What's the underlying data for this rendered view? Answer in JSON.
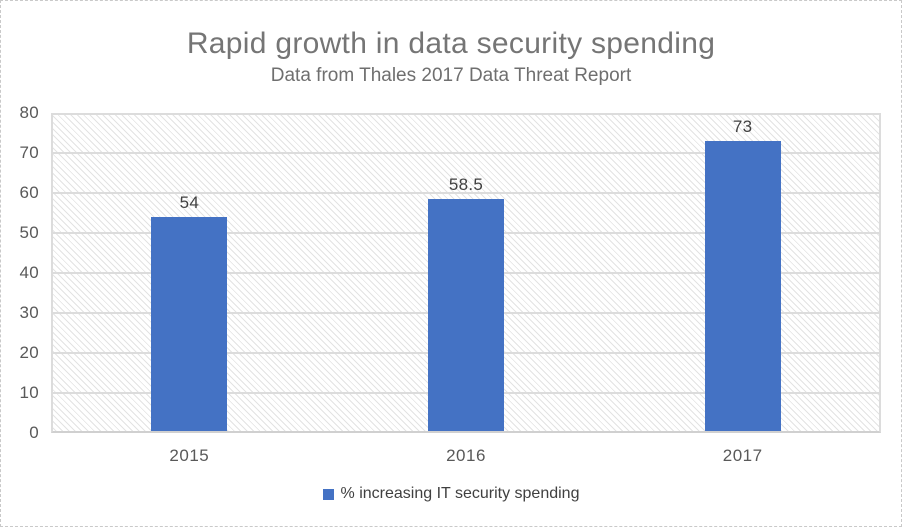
{
  "chart_data": {
    "type": "bar",
    "title": "Rapid growth in data security spending",
    "subtitle": "Data from Thales 2017 Data Threat Report",
    "categories": [
      "2015",
      "2016",
      "2017"
    ],
    "series": [
      {
        "name": "% increasing IT security spending",
        "values": [
          54,
          58.5,
          73
        ],
        "color": "#4472C4"
      }
    ],
    "data_labels": [
      "54",
      "58.5",
      "73"
    ],
    "xlabel": "",
    "ylabel": "",
    "ylim": [
      0,
      80
    ],
    "yticks": [
      0,
      10,
      20,
      30,
      40,
      50,
      60,
      70,
      80
    ],
    "grid": true,
    "legend_position": "bottom",
    "plot_background": "light-downward-diagonal-hatch"
  },
  "legend": {
    "label": "% increasing IT security spending",
    "marker_color": "#4472C4"
  },
  "colors": {
    "bar": "#4472C4",
    "gridline": "#dcdcdc",
    "hatch_line": "#e3e3e3",
    "title_text": "#757575",
    "subtitle_text": "#6f6f6f",
    "axis_text": "#595959",
    "data_label_text": "#404040",
    "chart_border": "#c9c9c9"
  }
}
